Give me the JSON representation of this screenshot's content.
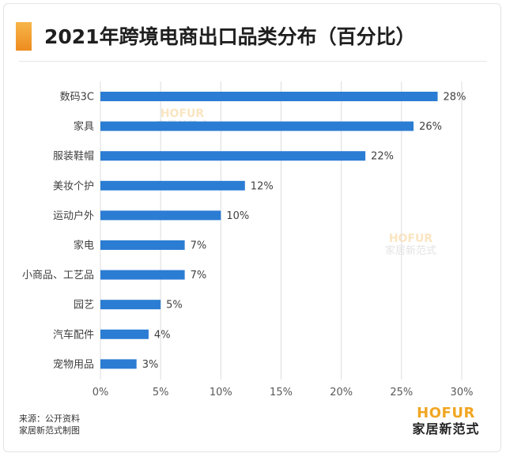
{
  "header": {
    "title": "2021年跨境电商出口品类分布（百分比）"
  },
  "chart_data": {
    "type": "bar",
    "orientation": "horizontal",
    "title": "2021年跨境电商出口品类分布（百分比）",
    "categories": [
      "数码3C",
      "家具",
      "服装鞋帽",
      "美妆个护",
      "运动户外",
      "家电",
      "小商品、工艺品",
      "园艺",
      "汽车配件",
      "宠物用品"
    ],
    "values": [
      28,
      26,
      22,
      12,
      10,
      7,
      7,
      5,
      4,
      3
    ],
    "value_suffix": "%",
    "xlim": [
      0,
      30
    ],
    "xticks": [
      0,
      5,
      10,
      15,
      20,
      25,
      30
    ],
    "tick_suffix": "%",
    "bar_color": "#2b7cd3",
    "grid": "vertical",
    "legend": "none"
  },
  "footer": {
    "source_line1": "来源：公开资料",
    "source_line2": "家居新范式制图",
    "brand_en": "HOFUR",
    "brand_cn": "家居新范式"
  },
  "watermark": {
    "en": "HOFUR",
    "cn": "家居新范式"
  },
  "colors": {
    "accent": "#f0a623",
    "bar": "#2b7cd3",
    "title": "#1f1f1f"
  }
}
